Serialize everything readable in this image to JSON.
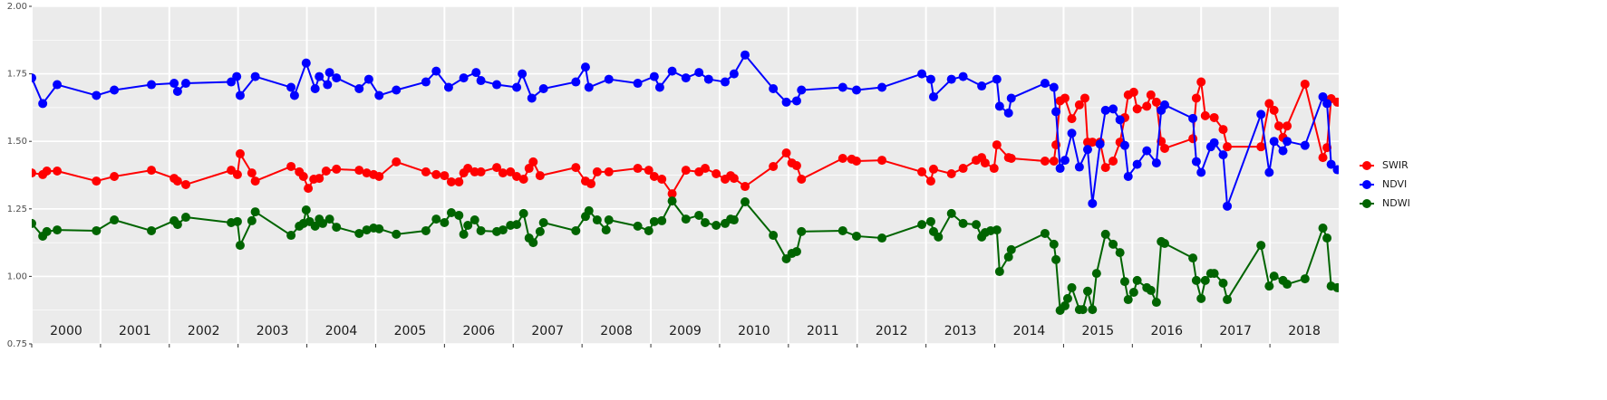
{
  "chart_data": {
    "type": "line",
    "xlim": [
      2000,
      2019
    ],
    "xticks": [
      2000,
      2001,
      2002,
      2003,
      2004,
      2005,
      2006,
      2007,
      2008,
      2009,
      2010,
      2011,
      2012,
      2013,
      2014,
      2015,
      2016,
      2017,
      2018
    ],
    "ylim": [
      0.75,
      2.0
    ],
    "yticks": [
      0.75,
      {
        "value": 1.0,
        "label": "1.00"
      },
      1.25,
      {
        "value": 1.5,
        "label": "1.50"
      },
      1.75,
      {
        "value": 2.0,
        "label": "2.00"
      }
    ],
    "grid": true,
    "legend": "right",
    "series": [
      {
        "name": "SWIR",
        "color": "#ff0000",
        "x": [
          2000,
          2000.16,
          2000.22,
          2000.37,
          2000.94,
          2001.2,
          2001.74,
          2002.07,
          2002.12,
          2002.24,
          2002.9,
          2002.99,
          2003.03,
          2003.2,
          2003.25,
          2003.77,
          2003.89,
          2003.95,
          2004.02,
          2004.1,
          2004.18,
          2004.28,
          2004.43,
          2004.76,
          2004.87,
          2004.97,
          2005.05,
          2005.3,
          2005.73,
          2005.88,
          2006,
          2006.1,
          2006.21,
          2006.28,
          2006.34,
          2006.44,
          2006.53,
          2006.76,
          2006.85,
          2006.96,
          2007.05,
          2007.15,
          2007.23,
          2007.29,
          2007.39,
          2007.91,
          2008.05,
          2008.13,
          2008.22,
          2008.39,
          2008.81,
          2008.97,
          2009.05,
          2009.16,
          2009.31,
          2009.51,
          2009.7,
          2009.79,
          2009.95,
          2010.08,
          2010.16,
          2010.21,
          2010.37,
          2010.78,
          2010.97,
          2011.05,
          2011.12,
          2011.19,
          2011.79,
          2011.92,
          2011.99,
          2012.36,
          2012.94,
          2013.07,
          2013.11,
          2013.37,
          2013.54,
          2013.73,
          2013.81,
          2013.86,
          2013.99,
          2014.03,
          2014.2,
          2014.24,
          2014.73,
          2014.86,
          2014.89,
          2014.95,
          2015.02,
          2015.12,
          2015.23,
          2015.31,
          2015.35,
          2015.42,
          2015.53,
          2015.61,
          2015.72,
          2015.82,
          2015.89,
          2015.94,
          2016.02,
          2016.07,
          2016.21,
          2016.27,
          2016.35,
          2016.42,
          2016.47,
          2016.88,
          2016.93,
          2017,
          2017.06,
          2017.19,
          2017.32,
          2017.38,
          2017.87,
          2017.99,
          2018.06,
          2018.13,
          2018.19,
          2018.25,
          2018.51,
          2018.77,
          2018.83,
          2018.89,
          2018.98
        ],
        "values": [
          1.383,
          1.377,
          1.39,
          1.39,
          1.353,
          1.37,
          1.393,
          1.363,
          1.353,
          1.34,
          1.393,
          1.377,
          1.454,
          1.383,
          1.353,
          1.407,
          1.387,
          1.37,
          1.326,
          1.36,
          1.363,
          1.39,
          1.397,
          1.393,
          1.383,
          1.377,
          1.37,
          1.424,
          1.387,
          1.377,
          1.373,
          1.35,
          1.35,
          1.383,
          1.4,
          1.387,
          1.387,
          1.403,
          1.383,
          1.387,
          1.37,
          1.36,
          1.4,
          1.424,
          1.373,
          1.403,
          1.353,
          1.343,
          1.387,
          1.387,
          1.4,
          1.393,
          1.37,
          1.36,
          1.306,
          1.393,
          1.387,
          1.4,
          1.38,
          1.36,
          1.373,
          1.363,
          1.333,
          1.407,
          1.457,
          1.42,
          1.41,
          1.36,
          1.437,
          1.434,
          1.427,
          1.43,
          1.387,
          1.353,
          1.397,
          1.38,
          1.4,
          1.43,
          1.44,
          1.42,
          1.4,
          1.487,
          1.44,
          1.437,
          1.427,
          1.427,
          1.487,
          1.65,
          1.66,
          1.584,
          1.635,
          1.66,
          1.497,
          1.497,
          1.497,
          1.403,
          1.427,
          1.497,
          1.588,
          1.672,
          1.682,
          1.62,
          1.63,
          1.672,
          1.645,
          1.5,
          1.474,
          1.51,
          1.66,
          1.72,
          1.595,
          1.588,
          1.544,
          1.48,
          1.48,
          1.64,
          1.615,
          1.557,
          1.514,
          1.557,
          1.712,
          1.44,
          1.477,
          1.658,
          1.645
        ]
      },
      {
        "name": "NDVI",
        "color": "#0000ff",
        "x": [
          2000,
          2000.16,
          2000.37,
          2000.94,
          2001.2,
          2001.74,
          2002.07,
          2002.12,
          2002.24,
          2002.9,
          2002.98,
          2003.03,
          2003.25,
          2003.77,
          2003.82,
          2003.99,
          2004.12,
          2004.18,
          2004.3,
          2004.33,
          2004.43,
          2004.76,
          2004.9,
          2005.05,
          2005.3,
          2005.73,
          2005.88,
          2006.06,
          2006.28,
          2006.46,
          2006.53,
          2006.76,
          2007.05,
          2007.13,
          2007.27,
          2007.44,
          2007.91,
          2008.05,
          2008.1,
          2008.39,
          2008.81,
          2009.05,
          2009.13,
          2009.31,
          2009.51,
          2009.7,
          2009.84,
          2010.08,
          2010.21,
          2010.37,
          2010.78,
          2010.97,
          2011.12,
          2011.19,
          2011.79,
          2011.99,
          2012.36,
          2012.94,
          2013.07,
          2013.11,
          2013.37,
          2013.54,
          2013.81,
          2014.03,
          2014.07,
          2014.2,
          2014.24,
          2014.73,
          2014.86,
          2014.89,
          2014.95,
          2015.02,
          2015.12,
          2015.23,
          2015.35,
          2015.42,
          2015.53,
          2015.61,
          2015.72,
          2015.82,
          2015.89,
          2015.94,
          2016.07,
          2016.21,
          2016.35,
          2016.42,
          2016.47,
          2016.88,
          2016.93,
          2017,
          2017.14,
          2017.19,
          2017.32,
          2017.38,
          2017.87,
          2017.99,
          2018.06,
          2018.19,
          2018.25,
          2018.51,
          2018.77,
          2018.83,
          2018.89,
          2018.98
        ],
        "values": [
          1.735,
          1.64,
          1.71,
          1.67,
          1.69,
          1.71,
          1.715,
          1.685,
          1.715,
          1.72,
          1.74,
          1.67,
          1.74,
          1.7,
          1.67,
          1.79,
          1.695,
          1.74,
          1.71,
          1.755,
          1.735,
          1.695,
          1.73,
          1.67,
          1.69,
          1.72,
          1.76,
          1.7,
          1.735,
          1.755,
          1.725,
          1.71,
          1.7,
          1.75,
          1.66,
          1.695,
          1.72,
          1.775,
          1.7,
          1.73,
          1.715,
          1.74,
          1.7,
          1.76,
          1.735,
          1.755,
          1.73,
          1.72,
          1.75,
          1.82,
          1.695,
          1.645,
          1.65,
          1.69,
          1.7,
          1.69,
          1.7,
          1.75,
          1.73,
          1.665,
          1.73,
          1.74,
          1.705,
          1.73,
          1.63,
          1.605,
          1.66,
          1.715,
          1.7,
          1.61,
          1.4,
          1.43,
          1.53,
          1.405,
          1.47,
          1.27,
          1.49,
          1.615,
          1.62,
          1.58,
          1.485,
          1.37,
          1.415,
          1.465,
          1.42,
          1.615,
          1.635,
          1.585,
          1.425,
          1.385,
          1.48,
          1.495,
          1.45,
          1.26,
          1.6,
          1.385,
          1.5,
          1.465,
          1.5,
          1.485,
          1.665,
          1.64,
          1.415,
          1.395
        ]
      },
      {
        "name": "NDWI",
        "color": "#006400",
        "x": [
          2000,
          2000.16,
          2000.22,
          2000.37,
          2000.94,
          2001.2,
          2001.74,
          2002.07,
          2002.12,
          2002.24,
          2002.9,
          2002.99,
          2003.03,
          2003.2,
          2003.25,
          2003.77,
          2003.89,
          2003.95,
          2003.99,
          2004.04,
          2004.12,
          2004.18,
          2004.23,
          2004.33,
          2004.43,
          2004.76,
          2004.87,
          2004.97,
          2005.05,
          2005.3,
          2005.73,
          2005.88,
          2006,
          2006.1,
          2006.21,
          2006.28,
          2006.34,
          2006.44,
          2006.53,
          2006.76,
          2006.85,
          2006.96,
          2007.05,
          2007.15,
          2007.23,
          2007.29,
          2007.39,
          2007.44,
          2007.91,
          2008.05,
          2008.1,
          2008.22,
          2008.35,
          2008.39,
          2008.81,
          2008.97,
          2009.05,
          2009.16,
          2009.31,
          2009.51,
          2009.7,
          2009.79,
          2009.95,
          2010.08,
          2010.16,
          2010.21,
          2010.37,
          2010.78,
          2010.97,
          2011.05,
          2011.12,
          2011.19,
          2011.79,
          2011.99,
          2012.36,
          2012.94,
          2013.07,
          2013.11,
          2013.18,
          2013.37,
          2013.54,
          2013.73,
          2013.81,
          2013.86,
          2013.94,
          2014.03,
          2014.07,
          2014.2,
          2014.24,
          2014.73,
          2014.86,
          2014.89,
          2014.95,
          2015.02,
          2015.06,
          2015.12,
          2015.23,
          2015.28,
          2015.35,
          2015.42,
          2015.48,
          2015.61,
          2015.72,
          2015.82,
          2015.89,
          2015.94,
          2016.02,
          2016.07,
          2016.21,
          2016.27,
          2016.35,
          2016.42,
          2016.47,
          2016.88,
          2016.93,
          2017,
          2017.06,
          2017.14,
          2017.19,
          2017.32,
          2017.38,
          2017.87,
          2017.99,
          2018.06,
          2018.19,
          2018.25,
          2018.51,
          2018.77,
          2018.83,
          2018.89,
          2018.98
        ],
        "values": [
          1.196,
          1.149,
          1.166,
          1.172,
          1.169,
          1.209,
          1.169,
          1.206,
          1.192,
          1.219,
          1.199,
          1.203,
          1.115,
          1.206,
          1.239,
          1.152,
          1.186,
          1.196,
          1.246,
          1.203,
          1.186,
          1.212,
          1.196,
          1.212,
          1.182,
          1.159,
          1.172,
          1.179,
          1.176,
          1.156,
          1.169,
          1.212,
          1.199,
          1.236,
          1.226,
          1.156,
          1.189,
          1.209,
          1.169,
          1.166,
          1.172,
          1.189,
          1.192,
          1.233,
          1.142,
          1.125,
          1.166,
          1.199,
          1.169,
          1.222,
          1.243,
          1.209,
          1.172,
          1.209,
          1.186,
          1.169,
          1.203,
          1.206,
          1.279,
          1.212,
          1.226,
          1.199,
          1.189,
          1.196,
          1.212,
          1.209,
          1.276,
          1.152,
          1.065,
          1.085,
          1.092,
          1.166,
          1.169,
          1.149,
          1.142,
          1.192,
          1.203,
          1.166,
          1.146,
          1.233,
          1.196,
          1.192,
          1.146,
          1.162,
          1.169,
          1.172,
          1.018,
          1.072,
          1.099,
          1.159,
          1.119,
          1.062,
          0.874,
          0.891,
          0.918,
          0.958,
          0.877,
          0.877,
          0.945,
          0.877,
          1.011,
          1.156,
          1.119,
          1.088,
          0.981,
          0.914,
          0.941,
          0.985,
          0.958,
          0.948,
          0.904,
          1.129,
          1.122,
          1.068,
          0.985,
          0.918,
          0.985,
          1.011,
          1.011,
          0.975,
          0.914,
          1.115,
          0.964,
          1.001,
          0.985,
          0.971,
          0.991,
          1.179,
          1.142,
          0.964,
          0.958
        ]
      }
    ]
  }
}
